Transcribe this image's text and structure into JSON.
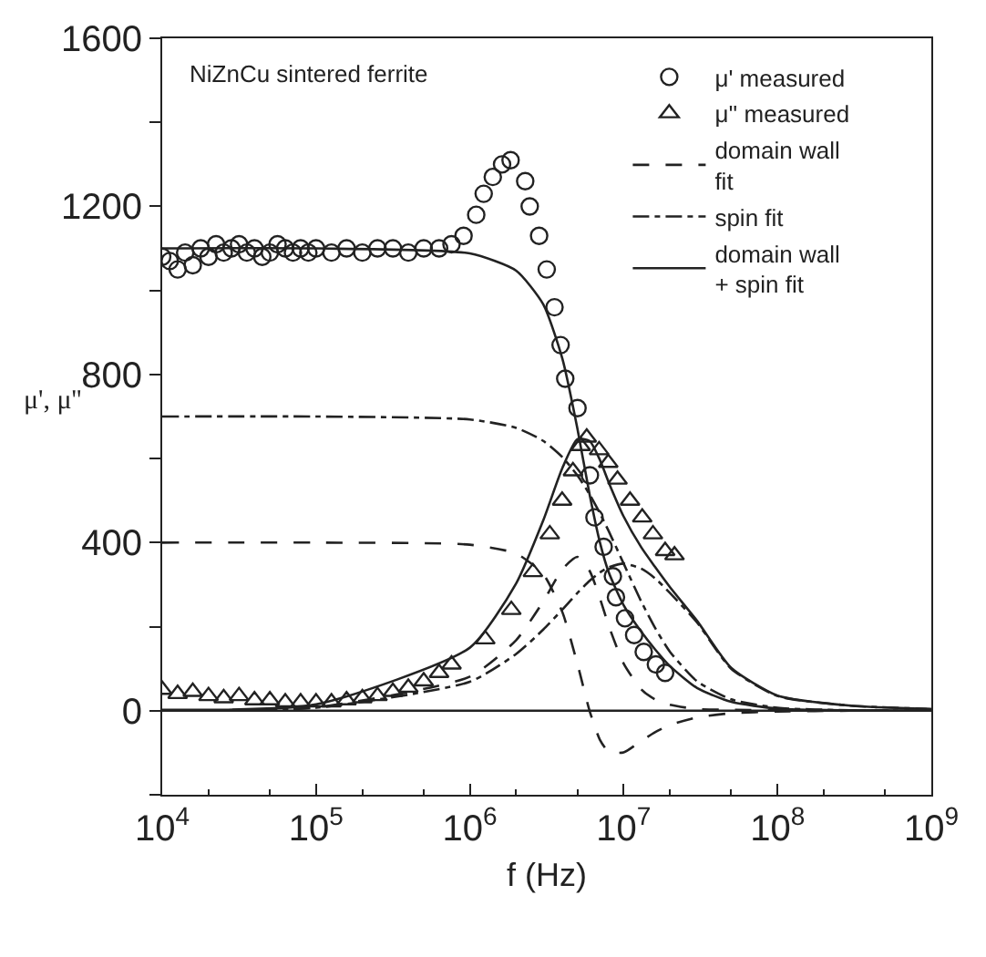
{
  "chart_data": {
    "type": "line",
    "xlabel": "f (Hz)",
    "ylabel": "μ', μ''",
    "annotations": [
      "NiZnCu sintered ferrite"
    ],
    "log": "x",
    "xlim": [
      10000,
      1000000000
    ],
    "ylim": [
      -200,
      1600
    ],
    "xticks": [
      {
        "value": 10000,
        "label": "10$^{4}$"
      },
      {
        "value": 100000,
        "label": "10$^{5}$"
      },
      {
        "value": 1000000,
        "label": "10$^{6}$"
      },
      {
        "value": 10000000,
        "label": "10$^{7}$"
      },
      {
        "value": 100000000,
        "label": "10$^{8}$"
      },
      {
        "value": 1000000000,
        "label": "10$^{9}$"
      }
    ],
    "yticks": [
      {
        "value": -200,
        "label": null
      },
      0,
      {
        "value": 200,
        "label": null
      },
      400,
      {
        "value": 600,
        "label": null
      },
      800,
      {
        "value": 1000,
        "label": null
      },
      1200,
      {
        "value": 1400,
        "label": null
      },
      1600
    ],
    "grid": false,
    "legend": "top right",
    "ref_lines": [
      {
        "axis": "y",
        "value": 0,
        "color": "#222222",
        "line_style": "solid"
      }
    ],
    "series": [
      {
        "name": "μ' measured",
        "type": "scatter",
        "marker": "circle",
        "color": "#222222",
        "x": [
          10000.0,
          11200.0,
          12600.0,
          14100.0,
          15800.0,
          17800.0,
          20000.0,
          22400.0,
          25100.0,
          28200.0,
          31600.0,
          35500.0,
          39800.0,
          44700.0,
          50100.0,
          56200.0,
          63100.0,
          70800.0,
          79400.0,
          89100.0,
          100000.0,
          126000.0,
          158000.0,
          200000.0,
          251000.0,
          316000.0,
          398000.0,
          501000.0,
          631000.0,
          760000.0,
          910000.0,
          1100000.0,
          1230000.0,
          1410000.0,
          1620000.0,
          1840000.0,
          2290000.0,
          2450000.0,
          2820000.0,
          3160000.0,
          3550000.0,
          3890000.0,
          4170000.0,
          5010000.0,
          6030000.0,
          6460000.0,
          7410000.0,
          8510000.0,
          8910000.0,
          10200000.0,
          11700000.0,
          13500000.0,
          16200000.0,
          18600000.0
        ],
        "values": [
          1080,
          1070,
          1050,
          1090,
          1060,
          1100,
          1080,
          1110,
          1090,
          1100,
          1110,
          1090,
          1100,
          1080,
          1090,
          1110,
          1100,
          1090,
          1100,
          1090,
          1100,
          1090,
          1100,
          1090,
          1100,
          1100,
          1090,
          1100,
          1100,
          1110,
          1130,
          1180,
          1230,
          1270,
          1300,
          1310,
          1260,
          1200,
          1130,
          1050,
          960,
          870,
          790,
          720,
          560,
          460,
          390,
          320,
          270,
          220,
          180,
          140,
          110,
          90
        ]
      },
      {
        "name": "μ'' measured",
        "type": "scatter",
        "marker": "triangle",
        "color": "#222222",
        "x": [
          10000.0,
          12600.0,
          15800.0,
          20000.0,
          25100.0,
          31600.0,
          39800.0,
          50100.0,
          63100.0,
          79400.0,
          100000.0,
          126000.0,
          158000.0,
          200000.0,
          251000.0,
          316000.0,
          398000.0,
          501000.0,
          631000.0,
          760000.0,
          1260000.0,
          1860000.0,
          2570000.0,
          3310000.0,
          3980000.0,
          4680000.0,
          5250000.0,
          5750000.0,
          6920000.0,
          7940000.0,
          9120000.0,
          11000000.0,
          13200000.0,
          15500000.0,
          18600000.0,
          21400000.0
        ],
        "values": [
          50,
          40,
          45,
          35,
          30,
          35,
          25,
          25,
          20,
          20,
          20,
          20,
          25,
          30,
          35,
          45,
          55,
          70,
          90,
          110,
          170,
          240,
          330,
          420,
          500,
          570,
          630,
          650,
          620,
          590,
          550,
          500,
          460,
          420,
          380,
          370
        ]
      },
      {
        "name": "domain wall fit",
        "type": "line",
        "line_style": "dashed",
        "color": "#222222",
        "x": [
          10000.0,
          100000.0,
          1000000.0,
          2000000.0,
          3000000.0,
          4000000.0,
          5000000.0,
          6000000.0,
          7000000.0,
          8000000.0,
          10000000.0,
          13000000.0,
          16000000.0,
          20000000.0,
          30000000.0,
          50000000.0,
          100000000.0,
          300000000.0,
          1000000000.0
        ],
        "values": [
          400,
          400,
          395,
          374,
          325,
          234,
          112,
          0,
          -69,
          -98,
          -99,
          -72,
          -51,
          -34,
          -16,
          -6,
          -2,
          0,
          0
        ]
      },
      {
        "type": "line",
        "line_style": "dashed",
        "color": "#222222",
        "x": [
          10000.0,
          100000.0,
          1000000.0,
          2000000.0,
          3000000.0,
          4000000.0,
          5000000.0,
          6000000.0,
          7000000.0,
          8000000.0,
          10000000.0,
          13000000.0,
          16000000.0,
          20000000.0,
          30000000.0,
          50000000.0,
          100000000.0,
          300000000.0,
          1000000000.0
        ],
        "values": [
          1,
          8,
          81,
          168,
          260,
          337,
          366,
          333,
          268,
          202,
          112,
          51,
          27,
          14,
          4,
          2,
          1,
          0,
          0
        ]
      },
      {
        "name": "spin fit",
        "type": "line",
        "line_style": "dashdot",
        "color": "#222222",
        "x": [
          10000.0,
          100000.0,
          1000000.0,
          2000000.0,
          3000000.0,
          4000000.0,
          5000000.0,
          6000000.0,
          7000000.0,
          8000000.0,
          10000000.0,
          13000000.0,
          16000000.0,
          20000000.0,
          30000000.0,
          50000000.0,
          100000000.0,
          300000000.0,
          1000000000.0
        ],
        "values": [
          700,
          700,
          693,
          673,
          642,
          603,
          560,
          515,
          470,
          427,
          350,
          260,
          197,
          140,
          70,
          27,
          7,
          1,
          0
        ]
      },
      {
        "type": "line",
        "line_style": "dashdot",
        "color": "#222222",
        "x": [
          10000.0,
          100000.0,
          1000000.0,
          2000000.0,
          3000000.0,
          4000000.0,
          5000000.0,
          6000000.0,
          7000000.0,
          8000000.0,
          10000000.0,
          13000000.0,
          16000000.0,
          20000000.0,
          30000000.0,
          50000000.0,
          100000000.0,
          300000000.0,
          1000000000.0
        ],
        "values": [
          1,
          7,
          69,
          135,
          193,
          241,
          280,
          309,
          329,
          341,
          350,
          338,
          315,
          280,
          210,
          100,
          35,
          12,
          4
        ]
      },
      {
        "name": "domain wall + spin fit",
        "type": "line",
        "line_style": "solid",
        "color": "#222222",
        "x": [
          10000.0,
          100000.0,
          1000000.0,
          2000000.0,
          3000000.0,
          4000000.0,
          5000000.0,
          6000000.0,
          7000000.0,
          8000000.0,
          10000000.0,
          13000000.0,
          16000000.0,
          20000000.0,
          30000000.0,
          50000000.0,
          100000000.0,
          300000000.0,
          1000000000.0
        ],
        "values": [
          1100,
          1100,
          1088,
          1047,
          967,
          837,
          672,
          515,
          401,
          329,
          251,
          188,
          146,
          106,
          54,
          21,
          5,
          1,
          0
        ]
      },
      {
        "type": "line",
        "line_style": "solid",
        "color": "#222222",
        "x": [
          10000.0,
          100000.0,
          1000000.0,
          2000000.0,
          3000000.0,
          4000000.0,
          5000000.0,
          6000000.0,
          7000000.0,
          8000000.0,
          10000000.0,
          13000000.0,
          16000000.0,
          20000000.0,
          30000000.0,
          50000000.0,
          100000000.0,
          300000000.0,
          1000000000.0
        ],
        "values": [
          2,
          15,
          150,
          303,
          453,
          578,
          646,
          642,
          597,
          543,
          462,
          389,
          342,
          294,
          214,
          102,
          36,
          12,
          4
        ]
      }
    ]
  }
}
